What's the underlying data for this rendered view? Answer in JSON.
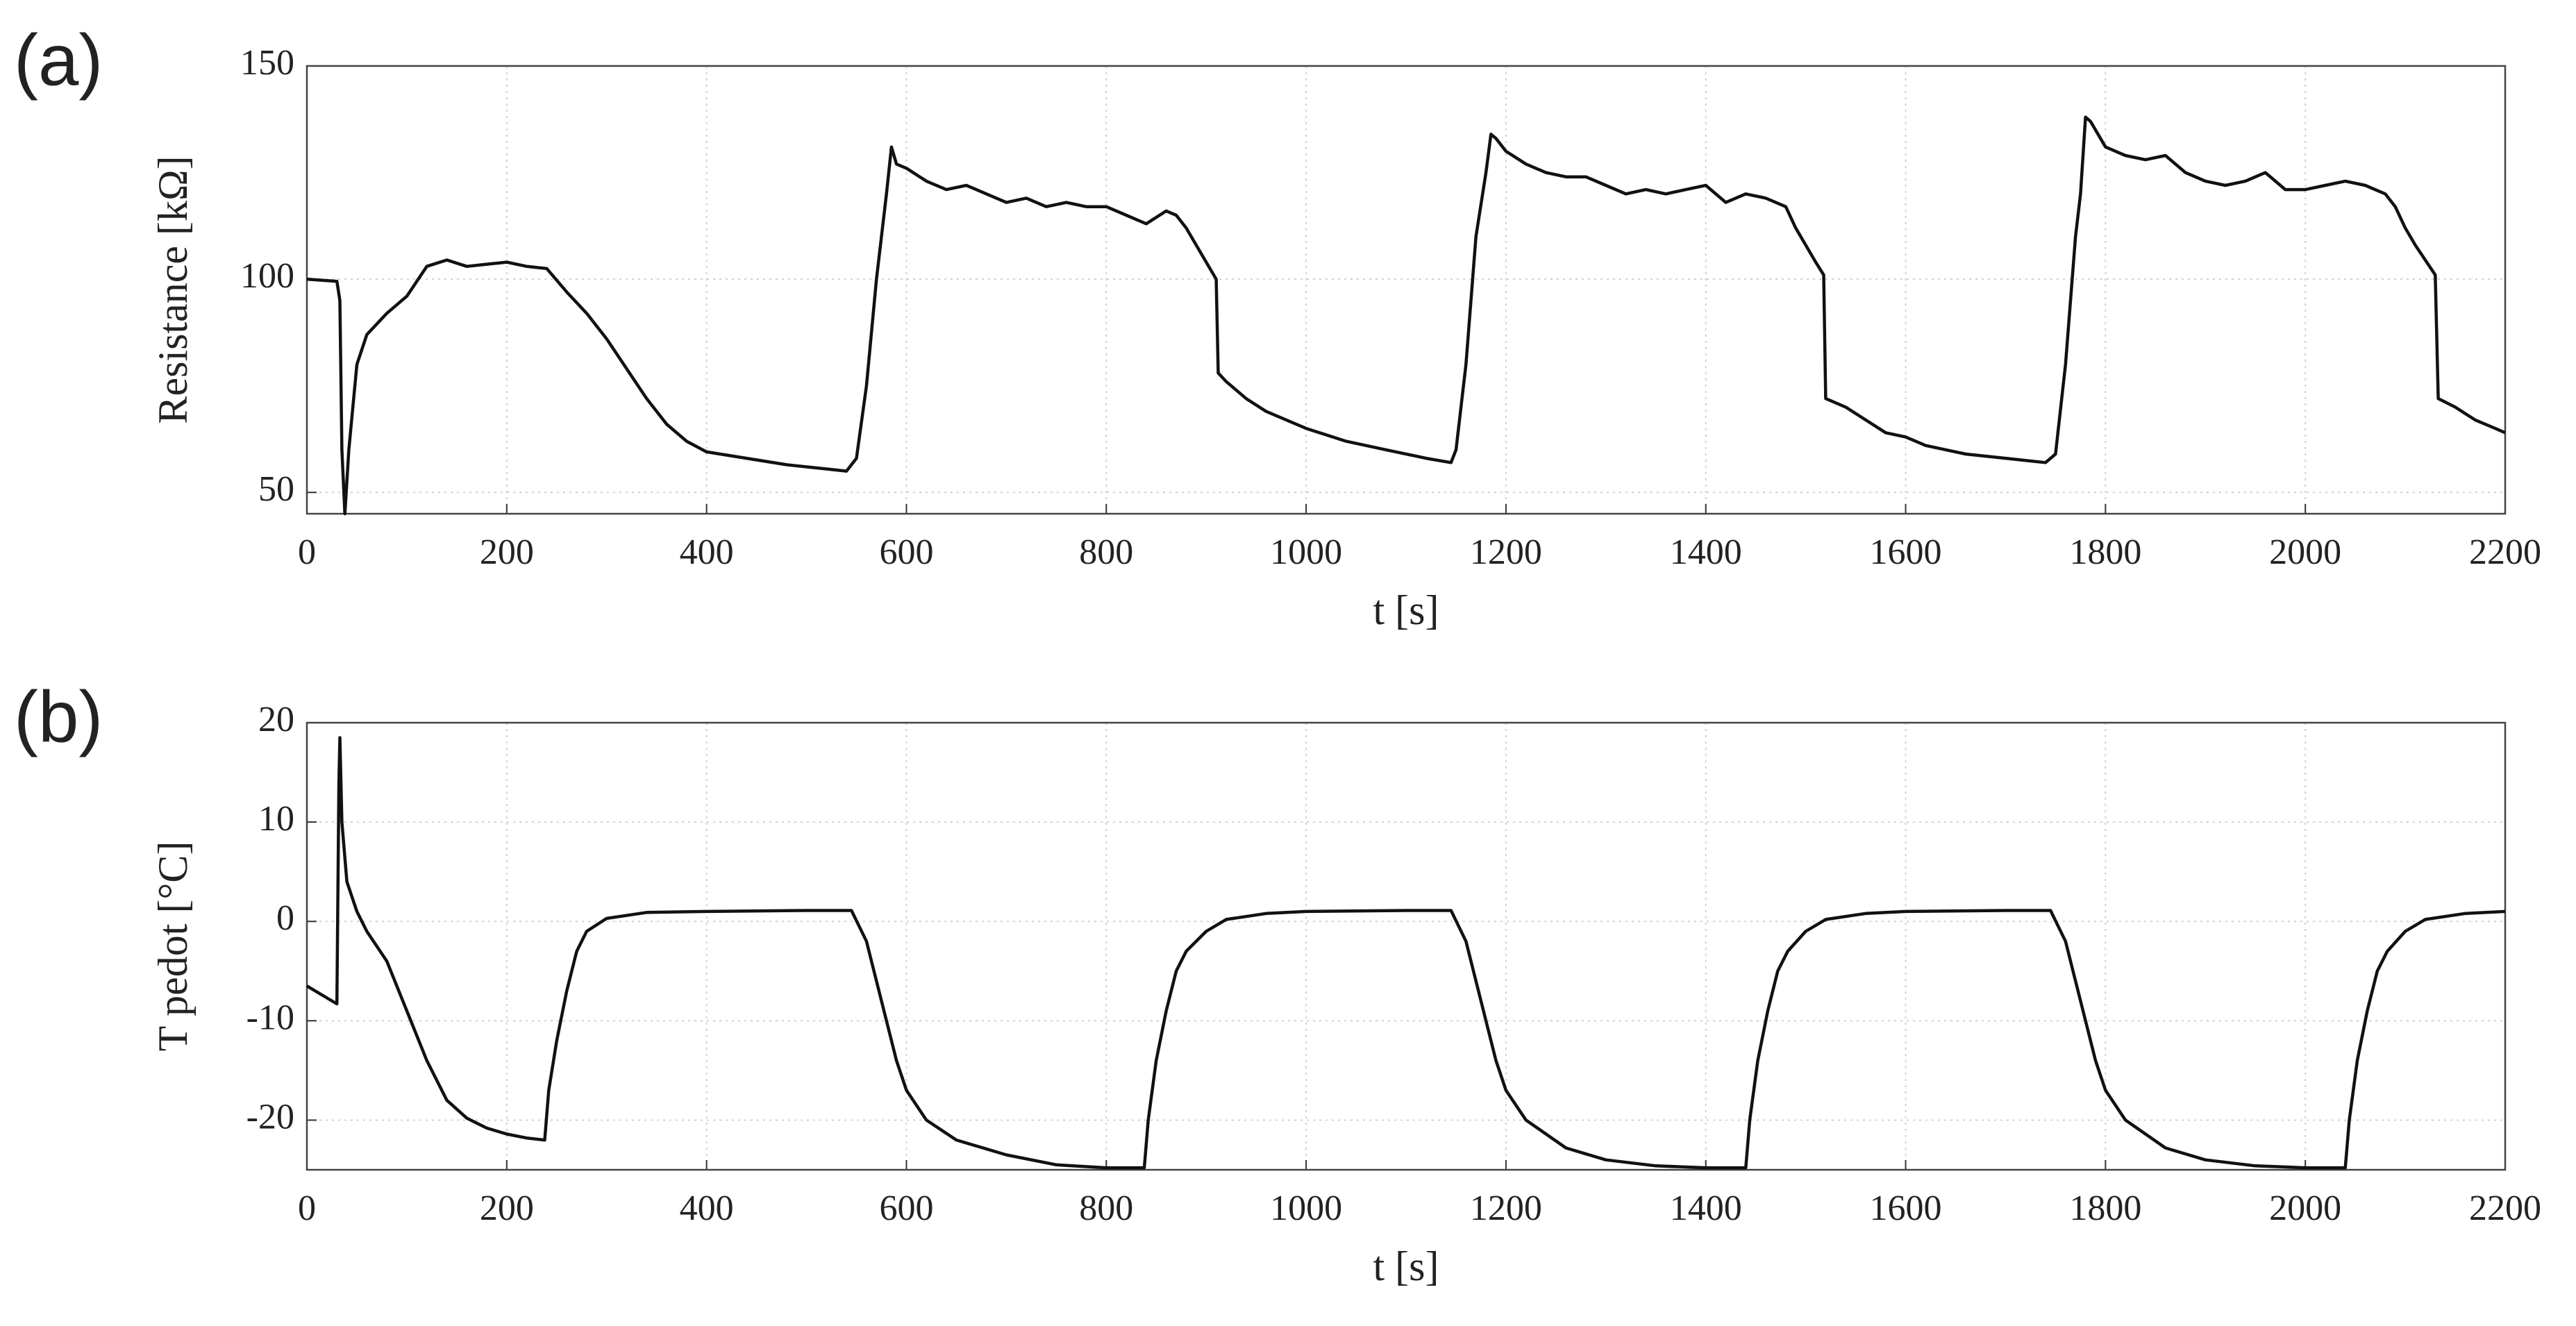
{
  "chart_data": [
    {
      "type": "line",
      "panel_label": "(a)",
      "y_label": "Resistance [kΩ]",
      "x_label": "t [s]",
      "xlim": [
        0,
        2200
      ],
      "xticks": [
        0,
        200,
        400,
        600,
        800,
        1000,
        1200,
        1400,
        1600,
        1800,
        2000,
        2200
      ],
      "ylim": [
        45,
        150
      ],
      "yticks": [
        50,
        100,
        150
      ],
      "grid": true,
      "color": "#111111",
      "x": [
        0,
        30,
        33,
        35,
        38,
        42,
        50,
        60,
        80,
        100,
        120,
        140,
        160,
        180,
        200,
        220,
        240,
        260,
        280,
        300,
        320,
        340,
        360,
        380,
        400,
        440,
        480,
        520,
        540,
        550,
        560,
        570,
        580,
        585,
        590,
        600,
        620,
        640,
        660,
        680,
        700,
        720,
        740,
        760,
        780,
        800,
        820,
        840,
        860,
        870,
        880,
        890,
        900,
        910,
        912,
        920,
        940,
        960,
        1000,
        1040,
        1080,
        1120,
        1145,
        1150,
        1160,
        1170,
        1180,
        1185,
        1190,
        1200,
        1220,
        1240,
        1260,
        1280,
        1300,
        1320,
        1340,
        1360,
        1380,
        1400,
        1420,
        1440,
        1460,
        1480,
        1490,
        1500,
        1510,
        1518,
        1520,
        1540,
        1560,
        1580,
        1600,
        1620,
        1660,
        1700,
        1740,
        1750,
        1760,
        1770,
        1775,
        1780,
        1785,
        1800,
        1820,
        1840,
        1860,
        1880,
        1900,
        1920,
        1940,
        1960,
        1980,
        2000,
        2020,
        2040,
        2060,
        2080,
        2090,
        2100,
        2110,
        2130,
        2133,
        2150,
        2170,
        2190,
        2200
      ],
      "values": [
        100,
        99.5,
        95,
        60,
        45,
        60,
        80,
        87,
        92,
        96,
        103,
        104.5,
        103,
        103.5,
        104,
        103,
        102.5,
        97,
        92,
        86,
        79,
        72,
        66,
        62,
        59.5,
        58,
        56.5,
        55.5,
        55,
        58,
        75,
        100,
        120,
        131,
        127,
        126,
        123,
        121,
        122,
        120,
        118,
        119,
        117,
        118,
        117,
        117,
        115,
        113,
        116,
        115,
        112,
        108,
        104,
        100,
        78,
        76,
        72,
        69,
        65,
        62,
        60,
        58,
        57,
        60,
        80,
        110,
        125,
        134,
        133,
        130,
        127,
        125,
        124,
        124,
        122,
        120,
        121,
        120,
        121,
        122,
        118,
        120,
        119,
        117,
        112,
        108,
        104,
        101,
        72,
        70,
        67,
        64,
        63,
        61,
        59,
        58,
        57,
        59,
        80,
        110,
        120,
        138,
        137,
        131,
        129,
        128,
        129,
        125,
        123,
        122,
        123,
        125,
        121,
        121,
        122,
        123,
        122,
        120,
        117,
        112,
        108,
        101,
        72,
        70,
        67,
        65,
        64
      ]
    },
    {
      "type": "line",
      "panel_label": "(b)",
      "y_label": "T pedot [°C]",
      "x_label": "t [s]",
      "xlim": [
        0,
        2200
      ],
      "xticks": [
        0,
        200,
        400,
        600,
        800,
        1000,
        1200,
        1400,
        1600,
        1800,
        2000,
        2200
      ],
      "ylim": [
        -25,
        20
      ],
      "yticks": [
        -20,
        -10,
        0,
        10,
        20
      ],
      "grid": true,
      "color": "#111111",
      "x": [
        0,
        30,
        32,
        33,
        35,
        40,
        50,
        60,
        80,
        100,
        120,
        140,
        160,
        180,
        200,
        220,
        238,
        242,
        250,
        260,
        270,
        280,
        300,
        340,
        400,
        500,
        545,
        560,
        570,
        580,
        590,
        600,
        620,
        650,
        700,
        750,
        800,
        838,
        842,
        850,
        860,
        870,
        880,
        900,
        920,
        960,
        1000,
        1100,
        1145,
        1160,
        1170,
        1180,
        1190,
        1200,
        1220,
        1260,
        1300,
        1350,
        1400,
        1440,
        1444,
        1452,
        1462,
        1472,
        1482,
        1500,
        1520,
        1560,
        1600,
        1700,
        1745,
        1760,
        1770,
        1780,
        1790,
        1800,
        1820,
        1860,
        1900,
        1950,
        2000,
        2040,
        2044,
        2052,
        2062,
        2072,
        2082,
        2100,
        2120,
        2160,
        2200
      ],
      "values": [
        -6.5,
        -8.3,
        14,
        18.5,
        10,
        4,
        1,
        -1,
        -4,
        -9,
        -14,
        -18,
        -19.8,
        -20.8,
        -21.4,
        -21.8,
        -22,
        -17,
        -12,
        -7,
        -3,
        -1,
        0.3,
        0.9,
        1,
        1.1,
        1.1,
        -2,
        -6,
        -10,
        -14,
        -17,
        -20,
        -22,
        -23.5,
        -24.5,
        -24.8,
        -24.8,
        -20,
        -14,
        -9,
        -5,
        -3,
        -1,
        0.2,
        0.8,
        1,
        1.1,
        1.1,
        -2,
        -6,
        -10,
        -14,
        -17,
        -20,
        -22.8,
        -24,
        -24.6,
        -24.8,
        -24.8,
        -20,
        -14,
        -9,
        -5,
        -3,
        -1,
        0.2,
        0.8,
        1,
        1.1,
        1.1,
        -2,
        -6,
        -10,
        -14,
        -17,
        -20,
        -22.8,
        -24,
        -24.6,
        -24.8,
        -24.8,
        -20,
        -14,
        -9,
        -5,
        -3,
        -1,
        0.2,
        0.8,
        1
      ]
    }
  ]
}
